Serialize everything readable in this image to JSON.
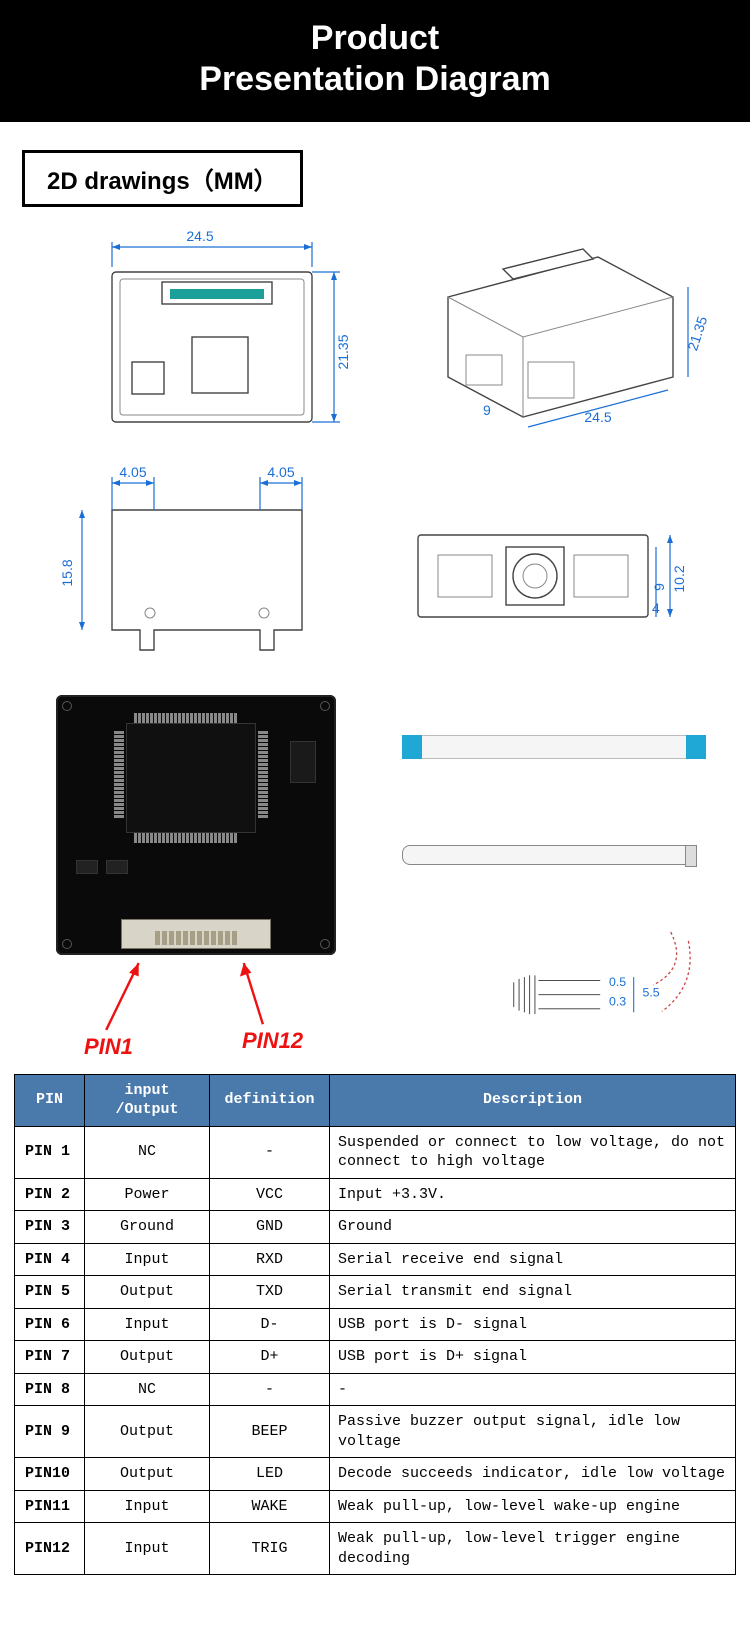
{
  "header": {
    "line1": "Product",
    "line2": "Presentation Diagram"
  },
  "section_label": "2D drawings（MM）",
  "dimensions": {
    "top_width": "24.5",
    "top_height": "21.35",
    "iso_width": "24.5",
    "iso_depth": "21.35",
    "side_notch_left": "4.05",
    "side_notch_right": "4.05",
    "side_height": "15.8",
    "front_height": "10.2",
    "front_inner1": "9",
    "front_inner2": "4",
    "iso_slot": "9"
  },
  "pin_labels": {
    "left": "PIN1",
    "right": "PIN12"
  },
  "cable_dims": {
    "a": "0.5",
    "b": "0.3",
    "c": "5.5"
  },
  "colors": {
    "header_bg": "#000000",
    "header_fg": "#ffffff",
    "dimension": "#1a6fd6",
    "table_header_bg": "#4a79ab",
    "table_header_fg": "#ffffff",
    "pcb_bg": "#0a0a0a",
    "pin_red": "#e11111",
    "cable_end": "#1fa7d6"
  },
  "table": {
    "headers": [
      "PIN",
      "input /Output",
      "definition",
      "Description"
    ],
    "rows": [
      {
        "pin": "PIN 1",
        "io": "NC",
        "def": "-",
        "desc": "Suspended or connect to low voltage, do not connect to high voltage"
      },
      {
        "pin": "PIN 2",
        "io": "Power",
        "def": "VCC",
        "desc": "Input +3.3V."
      },
      {
        "pin": "PIN 3",
        "io": "Ground",
        "def": "GND",
        "desc": "Ground"
      },
      {
        "pin": "PIN 4",
        "io": "Input",
        "def": "RXD",
        "desc": "Serial receive end signal"
      },
      {
        "pin": "PIN 5",
        "io": "Output",
        "def": "TXD",
        "desc": "Serial transmit end signal"
      },
      {
        "pin": "PIN 6",
        "io": "Input",
        "def": "D-",
        "desc": "USB port is D- signal"
      },
      {
        "pin": "PIN 7",
        "io": "Output",
        "def": "D+",
        "desc": "USB port is D+ signal"
      },
      {
        "pin": "PIN 8",
        "io": "NC",
        "def": "-",
        "desc": "-"
      },
      {
        "pin": "PIN 9",
        "io": "Output",
        "def": "BEEP",
        "desc": "Passive buzzer output signal, idle low voltage"
      },
      {
        "pin": "PIN10",
        "io": "Output",
        "def": "LED",
        "desc": "Decode succeeds indicator, idle low voltage"
      },
      {
        "pin": "PIN11",
        "io": "Input",
        "def": "WAKE",
        "desc": "Weak pull-up, low-level wake-up engine"
      },
      {
        "pin": "PIN12",
        "io": "Input",
        "def": "TRIG",
        "desc": "Weak pull-up, low-level trigger engine decoding"
      }
    ]
  }
}
